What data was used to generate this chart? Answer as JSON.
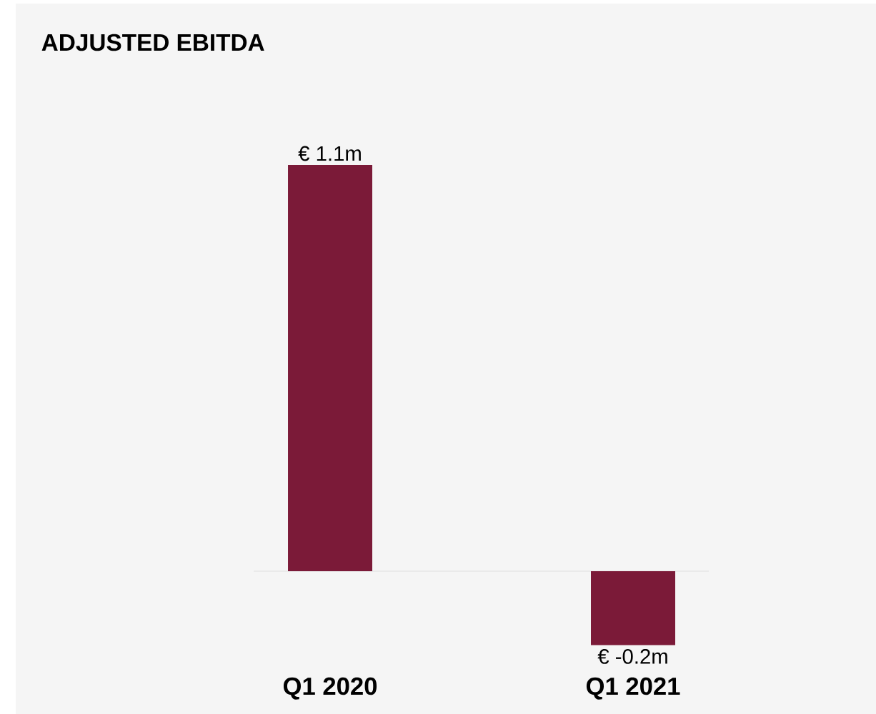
{
  "chart_data": {
    "type": "bar",
    "title": "ADJUSTED EBITDA",
    "categories": [
      "Q1 2020",
      "Q1 2021"
    ],
    "values": [
      1.1,
      -0.2
    ],
    "value_labels": [
      "€ 1.1m",
      "€ -0.2m"
    ],
    "color": "#7b1a38"
  }
}
